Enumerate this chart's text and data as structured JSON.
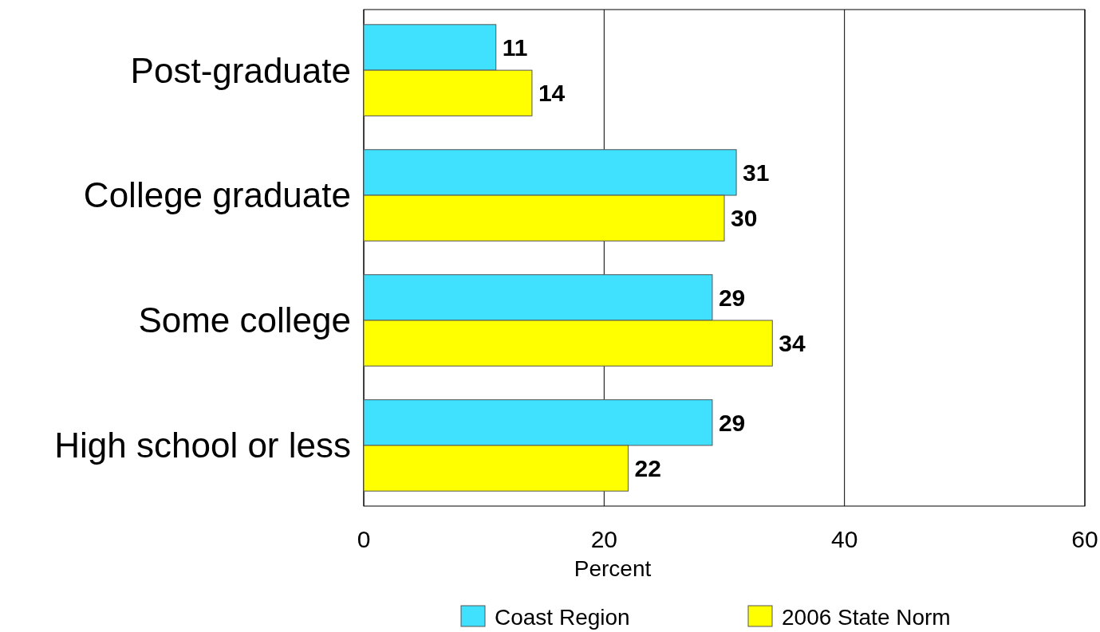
{
  "chart_data": {
    "type": "bar",
    "orientation": "horizontal",
    "categories": [
      "Post-graduate",
      "College graduate",
      "Some college",
      "High school or less"
    ],
    "series": [
      {
        "name": "Coast Region",
        "color": "#40e0ff",
        "values": [
          11,
          31,
          29,
          29
        ]
      },
      {
        "name": "2006 State Norm",
        "color": "#ffff00",
        "values": [
          14,
          30,
          34,
          22
        ]
      }
    ],
    "xlabel": "Percent",
    "xlim": [
      0,
      60
    ],
    "xticks": [
      0,
      20,
      40,
      60
    ],
    "grid": "x",
    "legend": "bottom",
    "data_labels": true
  }
}
